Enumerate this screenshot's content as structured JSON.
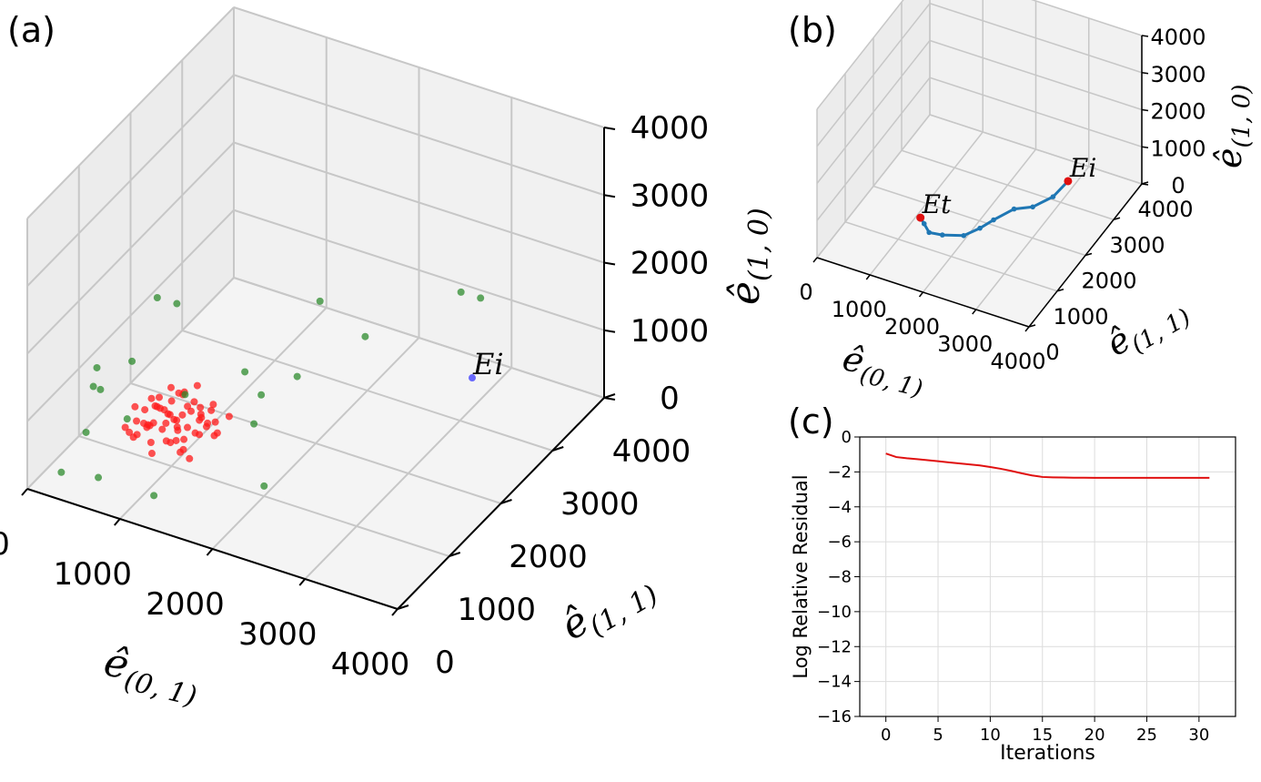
{
  "figure": {
    "panel_labels": [
      "(a)",
      "(b)",
      "(c)"
    ]
  },
  "chart_data": [
    {
      "id": "a",
      "type": "scatter3d",
      "axes": {
        "x": {
          "label_base": "e",
          "label_sub": "(0, 1)",
          "ticks": [
            0,
            1000,
            2000,
            3000,
            4000
          ],
          "range": [
            0,
            4000
          ]
        },
        "y": {
          "label_base": "e",
          "label_sub": "(1, 1)",
          "ticks": [
            0,
            1000,
            2000,
            3000,
            4000
          ],
          "range": [
            0,
            4000
          ]
        },
        "z": {
          "label_base": "e",
          "label_sub": "(1, 0)",
          "ticks": [
            0,
            1000,
            2000,
            3000,
            4000
          ],
          "range": [
            0,
            4000
          ]
        }
      },
      "series": [
        {
          "name": "red points",
          "color": "#ff1a1a",
          "points": [
            [
              600,
              900,
              400
            ],
            [
              700,
              1000,
              500
            ],
            [
              800,
              900,
              600
            ],
            [
              750,
              1100,
              450
            ],
            [
              900,
              1000,
              500
            ],
            [
              850,
              1200,
              550
            ],
            [
              1000,
              1100,
              600
            ],
            [
              950,
              1300,
              500
            ],
            [
              1100,
              1200,
              700
            ],
            [
              1050,
              1000,
              400
            ],
            [
              700,
              1300,
              650
            ],
            [
              650,
              1150,
              300
            ],
            [
              1200,
              1100,
              500
            ],
            [
              1150,
              1300,
              600
            ],
            [
              900,
              1400,
              700
            ],
            [
              800,
              1250,
              350
            ],
            [
              1000,
              900,
              450
            ],
            [
              1250,
              1250,
              550
            ],
            [
              600,
              1200,
              500
            ],
            [
              1100,
              1400,
              450
            ],
            [
              500,
              1000,
              350
            ],
            [
              1300,
              1000,
              600
            ],
            [
              900,
              800,
              300
            ],
            [
              1000,
              1500,
              800
            ],
            [
              750,
              1450,
              500
            ],
            [
              1150,
              900,
              350
            ],
            [
              850,
              1050,
              750
            ],
            [
              1200,
              1450,
              650
            ],
            [
              650,
              950,
              550
            ],
            [
              950,
              1200,
              400
            ],
            [
              1050,
              1350,
              700
            ],
            [
              1350,
              1200,
              450
            ],
            [
              700,
              800,
              450
            ],
            [
              1400,
              1400,
              600
            ],
            [
              600,
              1400,
              400
            ],
            [
              1250,
              900,
              300
            ],
            [
              900,
              1300,
              250
            ],
            [
              800,
              1500,
              600
            ],
            [
              1100,
              800,
              550
            ],
            [
              1000,
              1250,
              900
            ],
            [
              550,
              1100,
              600
            ],
            [
              1300,
              1350,
              350
            ],
            [
              850,
              850,
              650
            ],
            [
              1200,
              1200,
              800
            ],
            [
              750,
              1050,
              200
            ],
            [
              1050,
              1150,
              300
            ],
            [
              950,
              950,
              850
            ],
            [
              1150,
              1500,
              500
            ],
            [
              650,
              1350,
              450
            ],
            [
              1350,
              1050,
              700
            ],
            [
              1000,
              1050,
              650
            ],
            [
              800,
              1350,
              800
            ],
            [
              1100,
              1050,
              250
            ],
            [
              1250,
              1400,
              450
            ],
            [
              900,
              1150,
              600
            ],
            [
              700,
              1150,
              750
            ],
            [
              1050,
              1450,
              350
            ],
            [
              600,
              1050,
              250
            ],
            [
              1200,
              950,
              700
            ],
            [
              950,
              1400,
              550
            ]
          ]
        },
        {
          "name": "green points",
          "color": "#2e8b2e",
          "points": [
            [
              200,
              300,
              100
            ],
            [
              300,
              600,
              500
            ],
            [
              250,
              900,
              1200
            ],
            [
              400,
              1800,
              1600
            ],
            [
              100,
              1100,
              700
            ],
            [
              1500,
              1700,
              300
            ],
            [
              2000,
              1000,
              150
            ],
            [
              900,
              2600,
              100
            ],
            [
              1800,
              2000,
              900
            ],
            [
              600,
              300,
              200
            ],
            [
              350,
              1400,
              950
            ],
            [
              1300,
              2200,
              250
            ],
            [
              2200,
              2600,
              1200
            ],
            [
              400,
              700,
              1100
            ],
            [
              700,
              1800,
              300
            ],
            [
              1600,
              2800,
              1300
            ],
            [
              2900,
              3200,
              1700
            ],
            [
              3000,
              3400,
              1500
            ],
            [
              800,
              500,
              1000
            ],
            [
              1200,
              300,
              200
            ],
            [
              500,
              2000,
              1400
            ]
          ]
        },
        {
          "name": "E_i",
          "color": "#3a3aff",
          "points": [
            [
              3300,
              2700,
              1000
            ]
          ],
          "annotation": "E_i"
        }
      ]
    },
    {
      "id": "b",
      "type": "line3d",
      "axes": {
        "x": {
          "label_base": "e",
          "label_sub": "(0, 1)",
          "ticks": [
            0,
            1000,
            2000,
            3000,
            4000
          ],
          "range": [
            0,
            4000
          ]
        },
        "y": {
          "label_base": "e",
          "label_sub": "(1, 1)",
          "ticks": [
            0,
            1000,
            2000,
            3000,
            4000
          ],
          "range": [
            0,
            4000
          ]
        },
        "z": {
          "label_base": "e",
          "label_sub": "(1, 0)",
          "ticks": [
            0,
            1000,
            2000,
            3000,
            4000
          ],
          "range": [
            0,
            4000
          ]
        }
      },
      "series": [
        {
          "name": "trajectory",
          "color": "#1f77b4",
          "points": [
            [
              3300,
              2700,
              1000
            ],
            [
              3150,
              2450,
              750
            ],
            [
              2900,
              2200,
              600
            ],
            [
              2600,
              2100,
              500
            ],
            [
              2400,
              1750,
              450
            ],
            [
              2250,
              1550,
              350
            ],
            [
              2050,
              1350,
              250
            ],
            [
              1700,
              1250,
              200
            ],
            [
              1450,
              1250,
              150
            ],
            [
              1250,
              1450,
              100
            ],
            [
              1100,
              1600,
              50
            ]
          ]
        }
      ],
      "annotations": [
        {
          "label": "E_i",
          "point": [
            3300,
            2700,
            1000
          ],
          "color": "#e01010"
        },
        {
          "label": "E_t",
          "point": [
            1100,
            1600,
            50
          ],
          "color": "#e01010"
        }
      ]
    },
    {
      "id": "c",
      "type": "line",
      "xlabel": "Iterations",
      "ylabel": "Log Relative Residual",
      "xlim": [
        -2.5,
        33.5
      ],
      "ylim": [
        -16,
        0
      ],
      "xticks": [
        0,
        5,
        10,
        15,
        20,
        25,
        30
      ],
      "yticks": [
        0,
        -2,
        -4,
        -6,
        -8,
        -10,
        -12,
        -14,
        -16
      ],
      "grid": true,
      "series": [
        {
          "name": "residual",
          "color": "#e01010",
          "x": [
            0,
            1,
            2,
            3,
            4,
            5,
            6,
            7,
            8,
            9,
            10,
            11,
            12,
            13,
            14,
            15,
            16,
            17,
            18,
            19,
            20,
            21,
            22,
            23,
            24,
            25,
            26,
            27,
            28,
            29,
            30,
            31
          ],
          "y": [
            -0.95,
            -1.15,
            -1.22,
            -1.27,
            -1.33,
            -1.39,
            -1.45,
            -1.51,
            -1.57,
            -1.63,
            -1.72,
            -1.82,
            -1.94,
            -2.08,
            -2.2,
            -2.29,
            -2.31,
            -2.32,
            -2.33,
            -2.33,
            -2.34,
            -2.34,
            -2.34,
            -2.34,
            -2.34,
            -2.34,
            -2.34,
            -2.34,
            -2.34,
            -2.34,
            -2.34,
            -2.34
          ]
        }
      ]
    }
  ]
}
